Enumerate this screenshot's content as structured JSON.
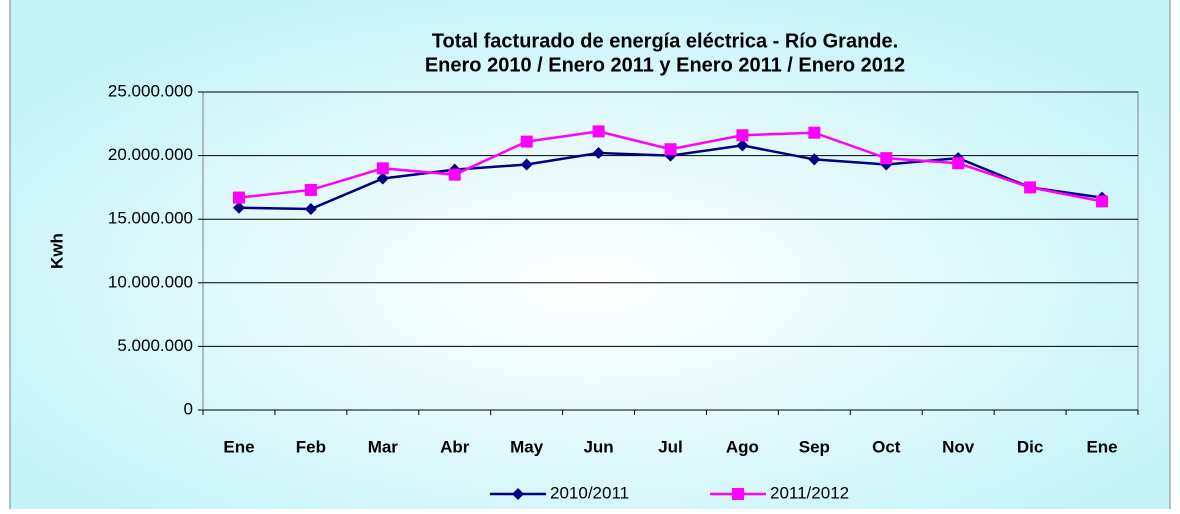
{
  "chart_data": {
    "type": "line",
    "title": "Total facturado de energía eléctrica - Río Grande.",
    "subtitle": "Enero 2010 / Enero 2011 y Enero 2011 / Enero 2012",
    "y_label": "Kwh",
    "categories": [
      "Ene",
      "Feb",
      "Mar",
      "Abr",
      "May",
      "Jun",
      "Jul",
      "Ago",
      "Sep",
      "Oct",
      "Nov",
      "Dic",
      "Ene"
    ],
    "series": [
      {
        "name": "2010/2011",
        "color": "#000080",
        "marker": "diamond",
        "values": [
          15900000,
          15800000,
          18200000,
          18900000,
          19300000,
          20200000,
          20000000,
          20800000,
          19700000,
          19300000,
          19800000,
          17500000,
          16700000
        ]
      },
      {
        "name": "2011/2012",
        "color": "#ff00ff",
        "marker": "square",
        "values": [
          16700000,
          17300000,
          19000000,
          18500000,
          21100000,
          21900000,
          20500000,
          21600000,
          21800000,
          19800000,
          19400000,
          17500000,
          16400000
        ]
      }
    ],
    "ylim": [
      0,
      25000000
    ],
    "yticks": [
      {
        "value": 0,
        "label": "0"
      },
      {
        "value": 5000000,
        "label": "5.000.000"
      },
      {
        "value": 10000000,
        "label": "10.000.000"
      },
      {
        "value": 15000000,
        "label": "15.000.000"
      },
      {
        "value": 20000000,
        "label": "20.000.000"
      },
      {
        "value": 25000000,
        "label": "25.000.000"
      }
    ],
    "grid": true,
    "legend": "bottom"
  }
}
